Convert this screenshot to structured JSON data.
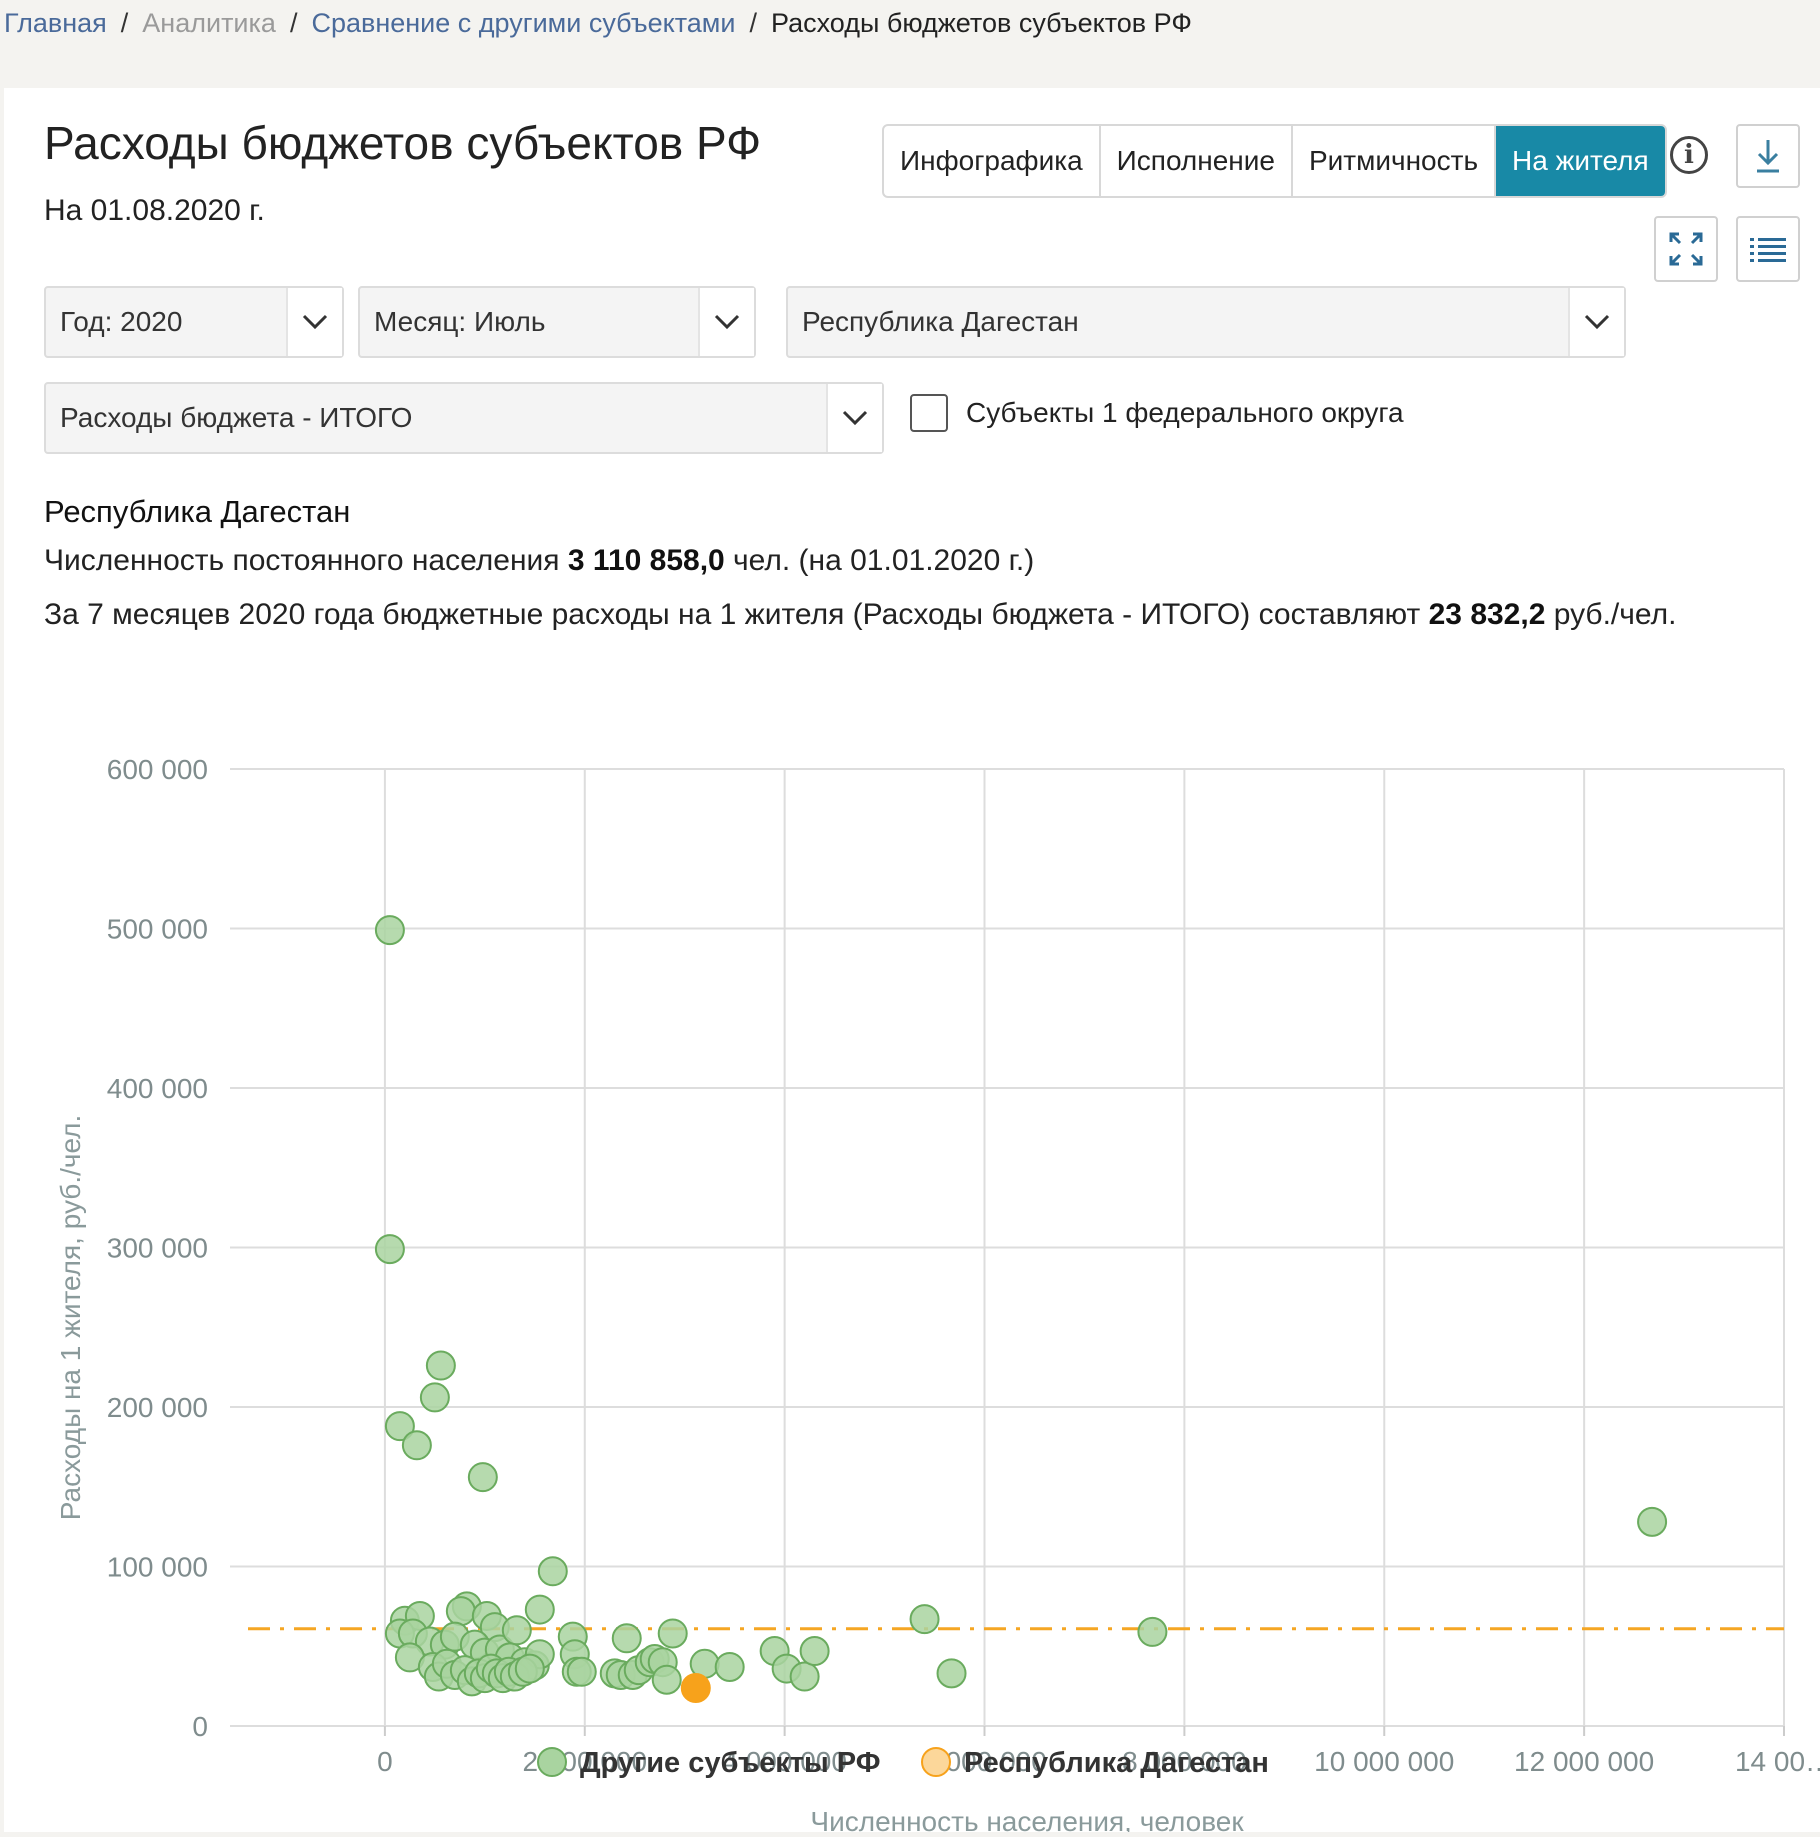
{
  "breadcrumb": {
    "home": "Главная",
    "analytics": "Аналитика",
    "compare": "Сравнение с другими субъектами",
    "current": "Расходы бюджетов субъектов РФ",
    "separator": "/"
  },
  "header": {
    "title": "Расходы бюджетов субъектов РФ",
    "date": "На 01.08.2020 г."
  },
  "tabs": [
    {
      "label": "Инфографика",
      "active": false
    },
    {
      "label": "Исполнение",
      "active": false
    },
    {
      "label": "Ритмичность",
      "active": false
    },
    {
      "label": "На жителя",
      "active": true
    }
  ],
  "toolbar": {
    "info_icon": "info-icon",
    "download_icon": "download-icon",
    "fullscreen_icon": "fullscreen-icon",
    "list_icon": "list-icon"
  },
  "filters": {
    "year": "Год: 2020",
    "month": "Месяц: Июль",
    "region": "Республика Дагестан",
    "indicator": "Расходы бюджета - ИТОГО",
    "checkbox_label": "Субъекты 1 федерального округа",
    "checkbox_checked": false
  },
  "summary": {
    "region_name": "Республика Дагестан",
    "population_prefix": "Численность постоянного населения ",
    "population_value": "3 110 858,0",
    "population_suffix": " чел. (на 01.01.2020 г.)",
    "spending_prefix": "За 7 месяцев 2020 года бюджетные расходы на 1 жителя (Расходы бюджета - ИТОГО) составляют ",
    "spending_value": "23 832,2",
    "spending_suffix": " руб./чел."
  },
  "colors": {
    "accent": "#1889a6",
    "other_point_fill": "#a9d4a0",
    "other_point_stroke": "#6aab5e",
    "highlight_point": "#f7a21b",
    "average_line": "#f5a623",
    "grid": "#dddddd"
  },
  "chart_data": {
    "type": "scatter",
    "xlabel": "Численность населения, человек",
    "ylabel": "Расходы на 1 жителя, руб./чел.",
    "xlim": [
      -1550000,
      14000000
    ],
    "ylim": [
      0,
      600000
    ],
    "x_ticks": [
      0,
      2000000,
      4000000,
      6000000,
      8000000,
      10000000,
      12000000,
      14000000
    ],
    "x_tick_labels": [
      "0",
      "2 000 000",
      "4 000 000",
      "6 000 000",
      "8 000 000",
      "10 000 000",
      "12 000 000",
      "14 00…"
    ],
    "y_ticks": [
      0,
      100000,
      200000,
      300000,
      400000,
      500000,
      600000
    ],
    "y_tick_labels": [
      "0",
      "100 000",
      "200 000",
      "300 000",
      "400 000",
      "500 000",
      "600 000"
    ],
    "average_line_y": 61000,
    "grid": true,
    "legend_position": "bottom-center",
    "series": [
      {
        "name": "Другие субъекты РФ",
        "color": "#a9d4a0",
        "points": [
          [
            50000,
            499000
          ],
          [
            50000,
            299000
          ],
          [
            560000,
            226000
          ],
          [
            500000,
            206000
          ],
          [
            150000,
            188000
          ],
          [
            320000,
            176000
          ],
          [
            980000,
            156000
          ],
          [
            1680000,
            97000
          ],
          [
            12680000,
            128000
          ],
          [
            5400000,
            67000
          ],
          [
            7680000,
            59000
          ],
          [
            5670000,
            33000
          ],
          [
            1550000,
            73000
          ],
          [
            820000,
            75000
          ],
          [
            760000,
            72000
          ],
          [
            1020000,
            69000
          ],
          [
            200000,
            66000
          ],
          [
            350000,
            69000
          ],
          [
            1100000,
            62000
          ],
          [
            150000,
            58000
          ],
          [
            280000,
            58000
          ],
          [
            450000,
            53000
          ],
          [
            600000,
            51000
          ],
          [
            700000,
            56000
          ],
          [
            900000,
            51000
          ],
          [
            1000000,
            46000
          ],
          [
            1150000,
            48000
          ],
          [
            1320000,
            60000
          ],
          [
            1250000,
            43000
          ],
          [
            1400000,
            40000
          ],
          [
            1500000,
            38000
          ],
          [
            1550000,
            45000
          ],
          [
            250000,
            43000
          ],
          [
            480000,
            37000
          ],
          [
            540000,
            31000
          ],
          [
            620000,
            39000
          ],
          [
            700000,
            32000
          ],
          [
            800000,
            35000
          ],
          [
            870000,
            28000
          ],
          [
            940000,
            33000
          ],
          [
            1000000,
            30000
          ],
          [
            1060000,
            36000
          ],
          [
            1120000,
            33000
          ],
          [
            1180000,
            30000
          ],
          [
            1240000,
            34000
          ],
          [
            1300000,
            31000
          ],
          [
            1380000,
            34000
          ],
          [
            1450000,
            36000
          ],
          [
            1880000,
            56000
          ],
          [
            1900000,
            45000
          ],
          [
            1920000,
            34000
          ],
          [
            1970000,
            34000
          ],
          [
            2300000,
            33000
          ],
          [
            2360000,
            32000
          ],
          [
            2420000,
            55000
          ],
          [
            2480000,
            32000
          ],
          [
            2540000,
            35000
          ],
          [
            2650000,
            40000
          ],
          [
            2700000,
            42000
          ],
          [
            2780000,
            40000
          ],
          [
            2820000,
            29000
          ],
          [
            2880000,
            58000
          ],
          [
            3200000,
            39000
          ],
          [
            3450000,
            37000
          ],
          [
            3900000,
            47000
          ],
          [
            4020000,
            36000
          ],
          [
            4200000,
            31000
          ],
          [
            4300000,
            47000
          ]
        ]
      },
      {
        "name": "Республика Дагестан",
        "color": "#f7a21b",
        "points": [
          [
            3110858,
            23832
          ]
        ]
      }
    ]
  }
}
